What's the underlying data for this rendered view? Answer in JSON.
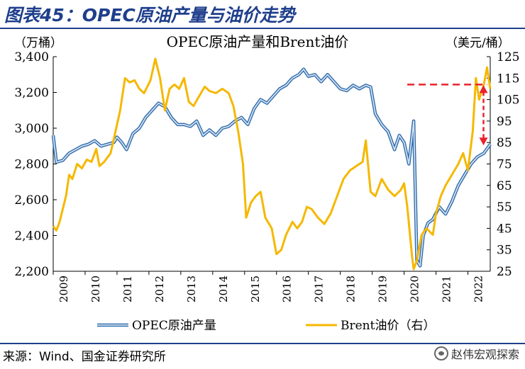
{
  "figure_title": "图表45：OPEC原油产量与油价走势",
  "source": "来源：Wind、国金证券研究所",
  "watermark": "赵伟宏观探索",
  "chart_data": {
    "type": "line",
    "title": "OPEC原油产量和Brent油价",
    "left_unit": "（万桶）",
    "right_unit": "（美元/桶）",
    "left_ylim": [
      2200,
      3400
    ],
    "right_ylim": [
      25,
      125
    ],
    "left_ticks": [
      "2,200",
      "2,400",
      "2,600",
      "2,800",
      "3,000",
      "3,200",
      "3,400"
    ],
    "right_ticks": [
      "25",
      "35",
      "45",
      "55",
      "65",
      "75",
      "85",
      "95",
      "105",
      "115",
      "125"
    ],
    "x_ticks": [
      "2009",
      "2010",
      "2011",
      "2012",
      "2013",
      "2014",
      "2015",
      "2016",
      "2017",
      "2018",
      "2019",
      "2020",
      "2021",
      "2022"
    ],
    "xlim": [
      2009,
      2022.7
    ],
    "series": [
      {
        "name": "OPEC原油产量",
        "axis": "left",
        "color": "#5b8fc9",
        "points": [
          [
            2009.0,
            2960
          ],
          [
            2009.1,
            2810
          ],
          [
            2009.3,
            2820
          ],
          [
            2009.5,
            2860
          ],
          [
            2009.7,
            2880
          ],
          [
            2009.9,
            2900
          ],
          [
            2010.1,
            2910
          ],
          [
            2010.3,
            2930
          ],
          [
            2010.5,
            2900
          ],
          [
            2010.7,
            2910
          ],
          [
            2010.9,
            2920
          ],
          [
            2011.0,
            2950
          ],
          [
            2011.15,
            2920
          ],
          [
            2011.3,
            2880
          ],
          [
            2011.5,
            2970
          ],
          [
            2011.7,
            3000
          ],
          [
            2011.9,
            3060
          ],
          [
            2012.1,
            3100
          ],
          [
            2012.3,
            3140
          ],
          [
            2012.5,
            3120
          ],
          [
            2012.7,
            3060
          ],
          [
            2012.9,
            3020
          ],
          [
            2013.1,
            3020
          ],
          [
            2013.3,
            3010
          ],
          [
            2013.5,
            3040
          ],
          [
            2013.7,
            2960
          ],
          [
            2013.9,
            2990
          ],
          [
            2014.1,
            2960
          ],
          [
            2014.3,
            3000
          ],
          [
            2014.5,
            3010
          ],
          [
            2014.7,
            3040
          ],
          [
            2014.9,
            3060
          ],
          [
            2015.1,
            3020
          ],
          [
            2015.3,
            3110
          ],
          [
            2015.5,
            3160
          ],
          [
            2015.7,
            3140
          ],
          [
            2015.9,
            3180
          ],
          [
            2016.1,
            3220
          ],
          [
            2016.3,
            3240
          ],
          [
            2016.5,
            3280
          ],
          [
            2016.7,
            3300
          ],
          [
            2016.85,
            3330
          ],
          [
            2017.0,
            3290
          ],
          [
            2017.2,
            3300
          ],
          [
            2017.4,
            3260
          ],
          [
            2017.6,
            3300
          ],
          [
            2017.8,
            3260
          ],
          [
            2018.0,
            3220
          ],
          [
            2018.2,
            3210
          ],
          [
            2018.4,
            3240
          ],
          [
            2018.6,
            3220
          ],
          [
            2018.8,
            3240
          ],
          [
            2018.95,
            3230
          ],
          [
            2019.1,
            3080
          ],
          [
            2019.3,
            3020
          ],
          [
            2019.5,
            2980
          ],
          [
            2019.7,
            2880
          ],
          [
            2019.85,
            2960
          ],
          [
            2020.0,
            2920
          ],
          [
            2020.15,
            2800
          ],
          [
            2020.3,
            3040
          ],
          [
            2020.4,
            2260
          ],
          [
            2020.5,
            2230
          ],
          [
            2020.6,
            2400
          ],
          [
            2020.75,
            2470
          ],
          [
            2020.9,
            2490
          ],
          [
            2021.1,
            2560
          ],
          [
            2021.3,
            2520
          ],
          [
            2021.5,
            2590
          ],
          [
            2021.7,
            2680
          ],
          [
            2021.9,
            2740
          ],
          [
            2022.1,
            2800
          ],
          [
            2022.3,
            2840
          ],
          [
            2022.5,
            2860
          ],
          [
            2022.7,
            2910
          ]
        ]
      },
      {
        "name": "Brent油价（右）",
        "axis": "right",
        "color": "#f5b800",
        "points": [
          [
            2009.0,
            46
          ],
          [
            2009.1,
            44
          ],
          [
            2009.2,
            48
          ],
          [
            2009.4,
            60
          ],
          [
            2009.5,
            70
          ],
          [
            2009.6,
            68
          ],
          [
            2009.75,
            75
          ],
          [
            2009.9,
            73
          ],
          [
            2010.05,
            77
          ],
          [
            2010.2,
            76
          ],
          [
            2010.35,
            82
          ],
          [
            2010.45,
            74
          ],
          [
            2010.6,
            76
          ],
          [
            2010.8,
            80
          ],
          [
            2010.95,
            90
          ],
          [
            2011.1,
            100
          ],
          [
            2011.25,
            115
          ],
          [
            2011.4,
            113
          ],
          [
            2011.55,
            114
          ],
          [
            2011.7,
            110
          ],
          [
            2011.85,
            108
          ],
          [
            2012.05,
            114
          ],
          [
            2012.2,
            124
          ],
          [
            2012.35,
            115
          ],
          [
            2012.5,
            100
          ],
          [
            2012.65,
            110
          ],
          [
            2012.8,
            112
          ],
          [
            2012.95,
            110
          ],
          [
            2013.1,
            115
          ],
          [
            2013.25,
            104
          ],
          [
            2013.4,
            102
          ],
          [
            2013.55,
            106
          ],
          [
            2013.75,
            111
          ],
          [
            2013.9,
            109
          ],
          [
            2014.1,
            108
          ],
          [
            2014.3,
            110
          ],
          [
            2014.5,
            108
          ],
          [
            2014.65,
            102
          ],
          [
            2014.8,
            90
          ],
          [
            2014.95,
            75
          ],
          [
            2015.05,
            50
          ],
          [
            2015.2,
            57
          ],
          [
            2015.35,
            60
          ],
          [
            2015.5,
            62
          ],
          [
            2015.65,
            50
          ],
          [
            2015.85,
            45
          ],
          [
            2016.0,
            33
          ],
          [
            2016.15,
            35
          ],
          [
            2016.3,
            42
          ],
          [
            2016.5,
            48
          ],
          [
            2016.65,
            45
          ],
          [
            2016.8,
            48
          ],
          [
            2016.95,
            55
          ],
          [
            2017.1,
            54
          ],
          [
            2017.3,
            50
          ],
          [
            2017.5,
            47
          ],
          [
            2017.7,
            52
          ],
          [
            2017.9,
            60
          ],
          [
            2018.1,
            68
          ],
          [
            2018.3,
            72
          ],
          [
            2018.5,
            74
          ],
          [
            2018.7,
            76
          ],
          [
            2018.8,
            86
          ],
          [
            2018.95,
            62
          ],
          [
            2019.1,
            60
          ],
          [
            2019.3,
            68
          ],
          [
            2019.5,
            63
          ],
          [
            2019.7,
            60
          ],
          [
            2019.9,
            63
          ],
          [
            2020.0,
            66
          ],
          [
            2020.1,
            55
          ],
          [
            2020.25,
            32
          ],
          [
            2020.3,
            26
          ],
          [
            2020.4,
            30
          ],
          [
            2020.55,
            42
          ],
          [
            2020.7,
            45
          ],
          [
            2020.9,
            42
          ],
          [
            2021.0,
            52
          ],
          [
            2021.15,
            60
          ],
          [
            2021.3,
            65
          ],
          [
            2021.5,
            70
          ],
          [
            2021.7,
            75
          ],
          [
            2021.85,
            80
          ],
          [
            2022.0,
            72
          ],
          [
            2022.15,
            90
          ],
          [
            2022.25,
            115
          ],
          [
            2022.35,
            105
          ],
          [
            2022.5,
            112
          ],
          [
            2022.6,
            120
          ],
          [
            2022.7,
            110
          ]
        ]
      }
    ],
    "annotation": {
      "type": "dashed-line-and-arrow",
      "color": "#e8232b",
      "level": 112,
      "arrow_from": 112,
      "arrow_to": 84,
      "x_from": 2020.1,
      "x_to": 2022.6
    },
    "legend_placement": "bottom",
    "grid": false
  }
}
